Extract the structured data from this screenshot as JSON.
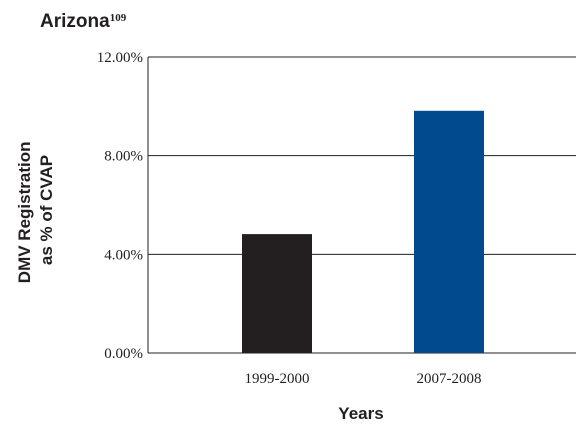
{
  "chart_data": {
    "type": "bar",
    "title": "Arizona",
    "title_superscript": "109",
    "categories": [
      "1999-2000",
      "2007-2008"
    ],
    "values": [
      4.82,
      9.82
    ],
    "bar_colors": [
      "#231f20",
      "#004a8d"
    ],
    "xlabel": "Years",
    "ylabel_lines": [
      "DMV Registration",
      "as % of CVAP"
    ],
    "ylim": [
      0,
      12
    ],
    "yticks": [
      0,
      4,
      8,
      12
    ],
    "ytick_labels": [
      "0.00%",
      "4.00%",
      "8.00%",
      "12.00%"
    ],
    "grid": true,
    "legend": "none"
  }
}
